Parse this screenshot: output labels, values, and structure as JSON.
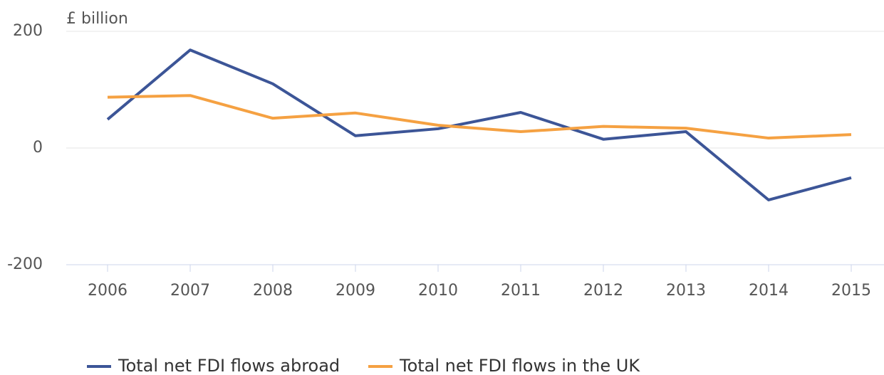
{
  "chart_data": {
    "type": "line",
    "y_label": "£ billion",
    "categories": [
      "2006",
      "2007",
      "2008",
      "2009",
      "2010",
      "2011",
      "2012",
      "2013",
      "2014",
      "2015"
    ],
    "series": [
      {
        "name": "Total net FDI flows abroad",
        "color": "#3c5597",
        "values": [
          49,
          168,
          110,
          21,
          33,
          61,
          15,
          28,
          -89,
          -51
        ]
      },
      {
        "name": "Total net FDI flows in the UK",
        "color": "#f5a142",
        "values": [
          87,
          90,
          51,
          60,
          39,
          28,
          37,
          34,
          17,
          23
        ]
      }
    ],
    "ylim": [
      -200,
      200
    ],
    "yticks": [
      -200,
      0,
      200
    ],
    "grid": true,
    "legend": "bottom"
  }
}
